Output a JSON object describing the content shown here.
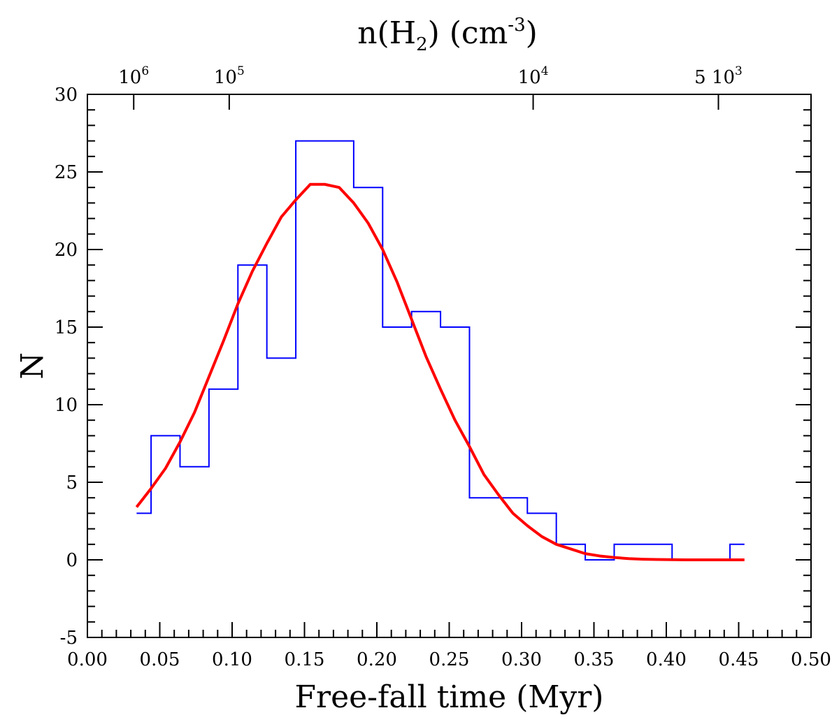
{
  "chart_data": {
    "type": "histogram",
    "xlabel": "Free-fall time (Myr)",
    "ylabel": "N",
    "xlim": [
      0.0,
      0.5
    ],
    "ylim": [
      -5,
      30
    ],
    "x_ticks": [
      0.0,
      0.05,
      0.1,
      0.15,
      0.2,
      0.25,
      0.3,
      0.35,
      0.4,
      0.45,
      0.5
    ],
    "x_tick_labels": [
      "0.00",
      "0.05",
      "0.10",
      "0.15",
      "0.20",
      "0.25",
      "0.30",
      "0.35",
      "0.40",
      "0.45",
      "0.50"
    ],
    "y_ticks": [
      -5,
      0,
      5,
      10,
      15,
      20,
      25,
      30
    ],
    "y_tick_labels": [
      "-5",
      "0",
      "5",
      "10",
      "15",
      "20",
      "25",
      "30"
    ],
    "top_axis": {
      "title_prefix": "n(H",
      "title_sub": "2",
      "title_mid": ") (cm",
      "title_sup": "-3",
      "title_suffix": ")",
      "ticks": [
        {
          "x": 0.032,
          "base": "10",
          "exp": "6"
        },
        {
          "x": 0.098,
          "base": "10",
          "exp": "5"
        },
        {
          "x": 0.308,
          "base": "10",
          "exp": "4"
        },
        {
          "x": 0.436,
          "base": "5 10",
          "exp": "3"
        }
      ]
    },
    "series": [
      {
        "name": "histogram",
        "style": "step",
        "color": "#0000ff",
        "bin_edges": [
          0.034,
          0.044,
          0.064,
          0.084,
          0.104,
          0.124,
          0.144,
          0.164,
          0.184,
          0.204,
          0.224,
          0.244,
          0.264,
          0.284,
          0.304,
          0.324,
          0.344,
          0.364,
          0.384,
          0.404,
          0.424,
          0.444,
          0.454
        ],
        "counts": [
          3,
          8,
          6,
          11,
          19,
          13,
          27,
          27,
          24,
          15,
          16,
          15,
          4,
          4,
          3,
          1,
          0,
          1,
          1,
          0,
          0,
          1
        ]
      },
      {
        "name": "fit",
        "style": "line",
        "color": "#ff0000",
        "x": [
          0.034,
          0.044,
          0.054,
          0.064,
          0.074,
          0.084,
          0.094,
          0.104,
          0.114,
          0.124,
          0.134,
          0.144,
          0.154,
          0.164,
          0.174,
          0.184,
          0.194,
          0.204,
          0.214,
          0.224,
          0.234,
          0.244,
          0.254,
          0.264,
          0.274,
          0.284,
          0.294,
          0.304,
          0.314,
          0.324,
          0.334,
          0.344,
          0.354,
          0.364,
          0.374,
          0.384,
          0.394,
          0.404,
          0.414,
          0.424,
          0.434,
          0.444,
          0.454
        ],
        "y": [
          3.4,
          4.6,
          5.9,
          7.6,
          9.5,
          11.8,
          14.1,
          16.5,
          18.6,
          20.4,
          22.1,
          23.2,
          24.2,
          24.2,
          24.0,
          23.0,
          21.7,
          20.0,
          17.9,
          15.5,
          13.1,
          11.0,
          9.0,
          7.3,
          5.5,
          4.2,
          3.0,
          2.2,
          1.5,
          1.0,
          0.7,
          0.4,
          0.25,
          0.15,
          0.08,
          0.04,
          0.02,
          0.01,
          0.0,
          0.0,
          0.0,
          0.0,
          0.0
        ]
      }
    ]
  }
}
